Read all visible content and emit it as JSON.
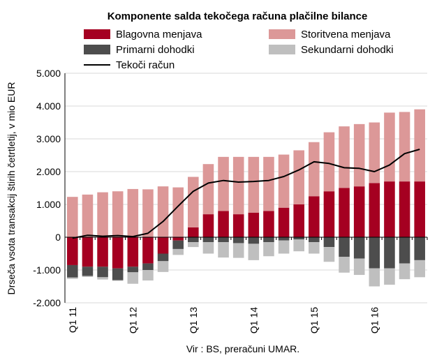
{
  "chart_data": {
    "type": "bar",
    "title": "Komponente salda tekočega računa plačilne bilance",
    "ylabel": "Drseča vsota transakcij štirih četrtletij, v mio EUR",
    "xlabel": "",
    "source": "Vir : BS, preračuni  UMAR.",
    "ylim": [
      -2000,
      5000
    ],
    "yticks": [
      -2000,
      -1000,
      0,
      1000,
      2000,
      3000,
      4000,
      5000
    ],
    "ytick_labels": [
      "-2.000",
      "-1.000",
      "0",
      "1.000",
      "2.000",
      "3.000",
      "4.000",
      "5.000"
    ],
    "categories": [
      "Q1 11",
      "Q2 11",
      "Q3 11",
      "Q4 11",
      "Q1 12",
      "Q2 12",
      "Q3 12",
      "Q4 12",
      "Q1 13",
      "Q2 13",
      "Q3 13",
      "Q4 13",
      "Q1 14",
      "Q2 14",
      "Q3 14",
      "Q4 14",
      "Q1 15",
      "Q2 15",
      "Q3 15",
      "Q4 15",
      "Q1 16",
      "Q2 16",
      "Q3 16",
      "Q4 16"
    ],
    "xtick_labels": [
      "Q1 11",
      "Q1 12",
      "Q1 13",
      "Q1 14",
      "Q1 15",
      "Q1 16"
    ],
    "xtick_indices": [
      0,
      4,
      8,
      12,
      16,
      20
    ],
    "legend_position": "top",
    "series": [
      {
        "name": "Blagovna menjava",
        "kind": "bar",
        "color": "#a50021",
        "values": [
          -850,
          -900,
          -900,
          -950,
          -900,
          -800,
          -500,
          -100,
          300,
          700,
          800,
          700,
          750,
          800,
          900,
          1000,
          1250,
          1400,
          1500,
          1550,
          1650,
          1700,
          1700,
          1700
        ]
      },
      {
        "name": "Storitvena menjava",
        "kind": "bar",
        "color": "#dc9898",
        "values": [
          1230,
          1300,
          1370,
          1400,
          1470,
          1460,
          1550,
          1520,
          1540,
          1530,
          1650,
          1750,
          1700,
          1650,
          1620,
          1650,
          1650,
          1800,
          1880,
          1900,
          1850,
          2100,
          2120,
          2200
        ]
      },
      {
        "name": "Primarni dohodki",
        "kind": "bar",
        "color": "#4d4d4d",
        "values": [
          -380,
          -280,
          -320,
          -360,
          -170,
          -200,
          -230,
          -260,
          -150,
          -150,
          -150,
          -180,
          -200,
          -150,
          -100,
          -70,
          -150,
          -300,
          -600,
          -650,
          -950,
          -950,
          -800,
          -700
        ]
      },
      {
        "name": "Sekundarni dohodki",
        "kind": "bar",
        "color": "#bfbfbf",
        "values": [
          -40,
          -30,
          -70,
          -20,
          -350,
          -320,
          -330,
          -180,
          -150,
          -350,
          -470,
          -450,
          -500,
          -430,
          -400,
          -360,
          -350,
          -450,
          -480,
          -500,
          -550,
          -500,
          -480,
          -520
        ]
      },
      {
        "name": "Tekoči račun",
        "kind": "line",
        "color": "#000000",
        "values": [
          -30,
          60,
          30,
          50,
          20,
          120,
          480,
          950,
          1400,
          1650,
          1730,
          1680,
          1700,
          1730,
          1850,
          2050,
          2300,
          2250,
          2120,
          2100,
          2000,
          2200,
          2550,
          2680
        ]
      }
    ]
  }
}
